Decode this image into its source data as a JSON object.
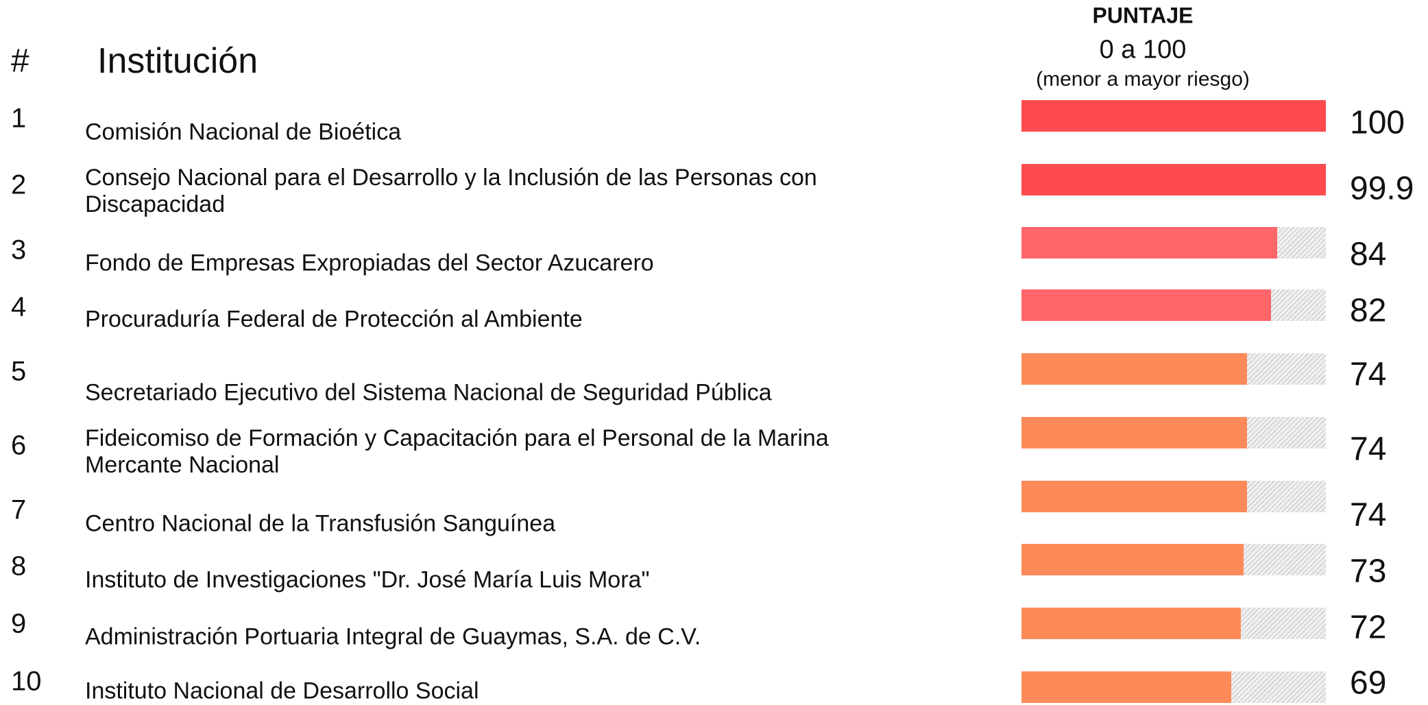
{
  "chart_data": {
    "type": "bar",
    "headers": {
      "rank": "#",
      "name": "Institución",
      "score_title": "PUNTAJE",
      "score_range": "0 a 100",
      "score_note": "(menor a mayor riesgo)"
    },
    "ranks": [
      1,
      2,
      3,
      4,
      5,
      6,
      7,
      8,
      9,
      10
    ],
    "categories": [
      "Comisión Nacional de Bioética",
      "Consejo Nacional para el Desarrollo y la Inclusión de las Personas con Discapacidad",
      "Fondo de Empresas Expropiadas del Sector Azucarero",
      "Procuraduría Federal de Protección al Ambiente",
      "Secretariado Ejecutivo del Sistema Nacional de Seguridad Pública",
      "Fideicomiso de Formación y Capacitación para el Personal de la Marina Mercante Nacional",
      "Centro Nacional de la Transfusión Sanguínea",
      "Instituto de Investigaciones \"Dr. José María Luis Mora\"",
      "Administración Portuaria Integral de Guaymas, S.A. de C.V.",
      "Instituto Nacional de Desarrollo Social"
    ],
    "values": [
      100,
      99.9,
      84,
      82,
      74,
      74,
      74,
      73,
      72,
      69
    ],
    "colors": [
      "#fe4b4f",
      "#fe4b4f",
      "#fe6669",
      "#fe6669",
      "#fe8a5a",
      "#fe8a5a",
      "#fe8a5a",
      "#fe8a5a",
      "#fe8a5a",
      "#fe8a5a"
    ],
    "xlim": [
      0,
      100
    ]
  }
}
